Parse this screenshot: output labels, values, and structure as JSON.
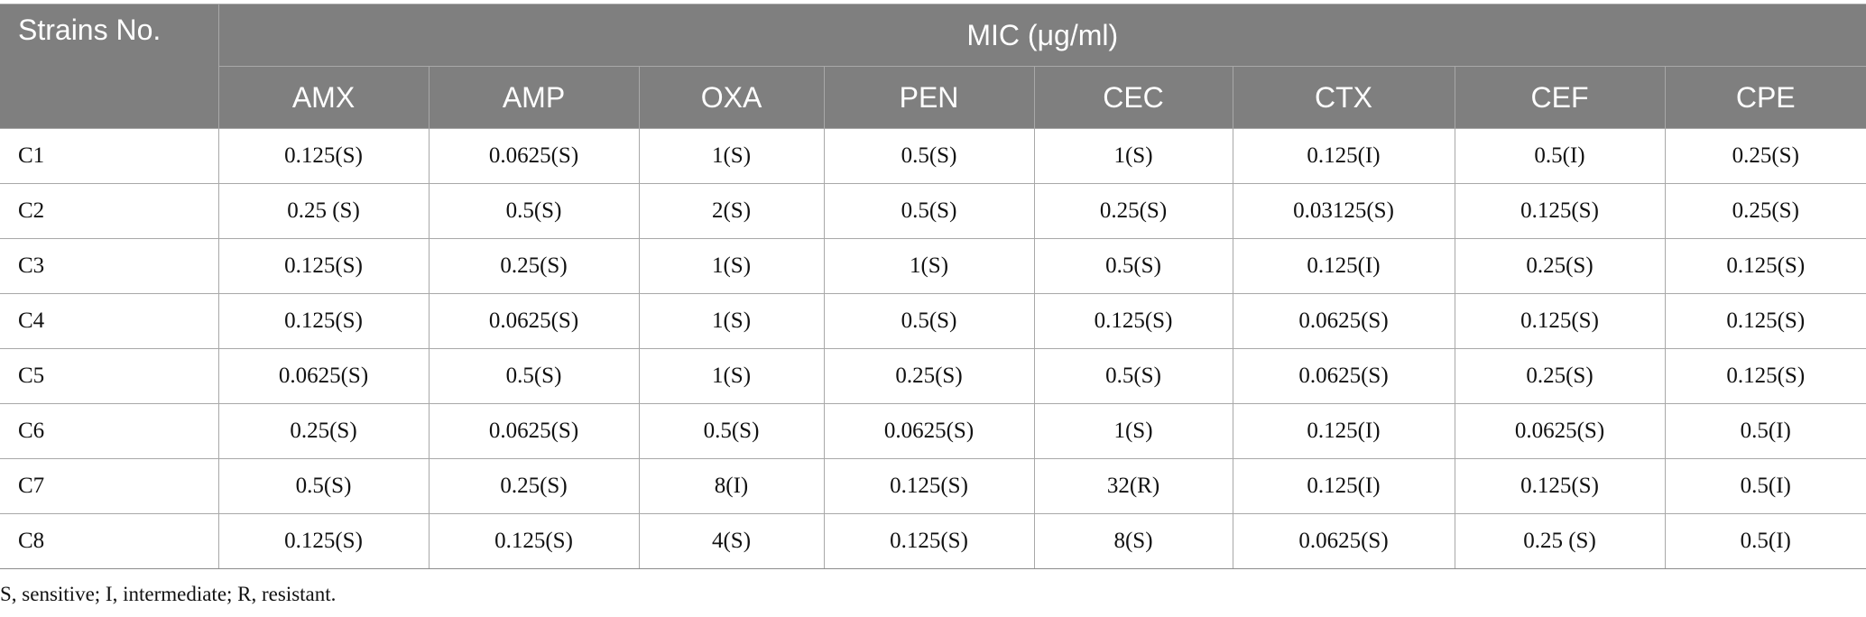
{
  "table": {
    "strain_header": "Strains No.",
    "group_header": "MIC (μg/ml)",
    "columns": [
      "AMX",
      "AMP",
      "OXA",
      "PEN",
      "CEC",
      "CTX",
      "CEF",
      "CPE"
    ],
    "rows": [
      {
        "strain": "C1",
        "values": [
          "0.125(S)",
          "0.0625(S)",
          "1(S)",
          "0.5(S)",
          "1(S)",
          "0.125(I)",
          "0.5(I)",
          "0.25(S)"
        ]
      },
      {
        "strain": "C2",
        "values": [
          "0.25 (S)",
          "0.5(S)",
          "2(S)",
          "0.5(S)",
          "0.25(S)",
          "0.03125(S)",
          "0.125(S)",
          "0.25(S)"
        ]
      },
      {
        "strain": "C3",
        "values": [
          "0.125(S)",
          "0.25(S)",
          "1(S)",
          "1(S)",
          "0.5(S)",
          "0.125(I)",
          "0.25(S)",
          "0.125(S)"
        ]
      },
      {
        "strain": "C4",
        "values": [
          "0.125(S)",
          "0.0625(S)",
          "1(S)",
          "0.5(S)",
          "0.125(S)",
          "0.0625(S)",
          "0.125(S)",
          "0.125(S)"
        ]
      },
      {
        "strain": "C5",
        "values": [
          "0.0625(S)",
          "0.5(S)",
          "1(S)",
          "0.25(S)",
          "0.5(S)",
          "0.0625(S)",
          "0.25(S)",
          "0.125(S)"
        ]
      },
      {
        "strain": "C6",
        "values": [
          "0.25(S)",
          "0.0625(S)",
          "0.5(S)",
          "0.0625(S)",
          "1(S)",
          "0.125(I)",
          "0.0625(S)",
          "0.5(I)"
        ]
      },
      {
        "strain": "C7",
        "values": [
          "0.5(S)",
          "0.25(S)",
          "8(I)",
          "0.125(S)",
          "32(R)",
          "0.125(I)",
          "0.125(S)",
          "0.5(I)"
        ]
      },
      {
        "strain": "C8",
        "values": [
          "0.125(S)",
          "0.125(S)",
          "4(S)",
          "0.125(S)",
          "8(S)",
          "0.0625(S)",
          "0.25 (S)",
          "0.5(I)"
        ]
      }
    ]
  },
  "footnote": "S, sensitive; I, intermediate; R, resistant.",
  "colors": {
    "header_background": "#7f7f7f",
    "header_text": "#ffffff",
    "grid_line": "#a8a8a8"
  }
}
